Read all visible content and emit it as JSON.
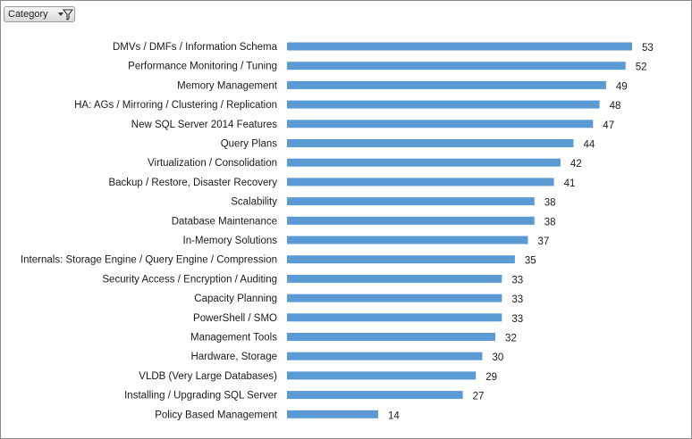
{
  "filter": {
    "label": "Category",
    "icon": "filter-dropdown-icon"
  },
  "colors": {
    "bar": "#5b9bd5",
    "frame": "#8a8a8a"
  },
  "chart_data": {
    "type": "bar",
    "orientation": "horizontal",
    "title": "",
    "xlabel": "",
    "ylabel": "",
    "xlim": [
      0,
      53
    ],
    "grid": false,
    "legend": "none",
    "data_labels": true,
    "categories": [
      "DMVs / DMFs / Information Schema",
      "Performance Monitoring / Tuning",
      "Memory Management",
      "HA: AGs / Mirroring / Clustering / Replication",
      "New SQL Server 2014 Features",
      "Query Plans",
      "Virtualization / Consolidation",
      "Backup / Restore, Disaster Recovery",
      "Scalability",
      "Database Maintenance",
      "In-Memory Solutions",
      "Internals: Storage Engine / Query Engine / Compression",
      "Security Access  / Encryption / Auditing",
      "Capacity Planning",
      "PowerShell / SMO",
      "Management Tools",
      "Hardware, Storage",
      "VLDB (Very Large Databases)",
      "Installing / Upgrading SQL Server",
      "Policy Based Management"
    ],
    "values": [
      53,
      52,
      49,
      48,
      47,
      44,
      42,
      41,
      38,
      38,
      37,
      35,
      33,
      33,
      33,
      32,
      30,
      29,
      27,
      14
    ]
  }
}
